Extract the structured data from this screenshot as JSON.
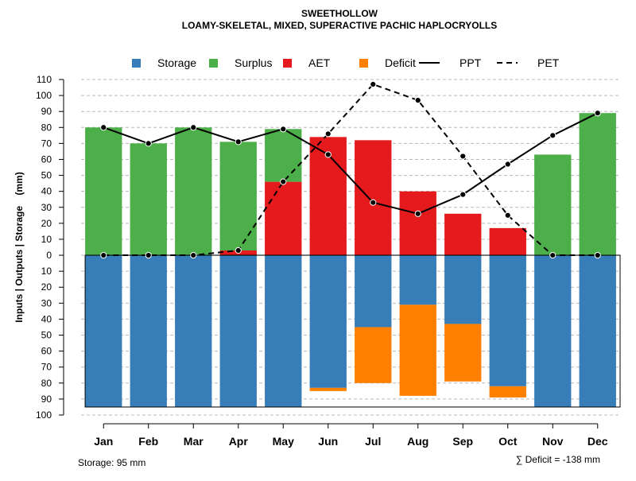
{
  "chart_data": {
    "type": "bar",
    "title": "SWEETHOLLOW",
    "subtitle": "LOAMY-SKELETAL, MIXED, SUPERACTIVE PACHIC HAPLOCRYOLLS",
    "ylabel": "Inputs | Outputs | Storage    (mm)",
    "categories": [
      "Jan",
      "Feb",
      "Mar",
      "Apr",
      "May",
      "Jun",
      "Jul",
      "Aug",
      "Sep",
      "Oct",
      "Nov",
      "Dec"
    ],
    "ylim": [
      -100,
      110
    ],
    "yticks": [
      110,
      100,
      90,
      80,
      70,
      60,
      50,
      40,
      30,
      20,
      10,
      0,
      -10,
      -20,
      -30,
      -40,
      -50,
      -60,
      -70,
      -80,
      -90,
      -100
    ],
    "ytick_labels": [
      "110",
      "100",
      "90",
      "80",
      "70",
      "60",
      "50",
      "40",
      "30",
      "20",
      "10",
      "0",
      "10",
      "20",
      "30",
      "40",
      "50",
      "60",
      "70",
      "80",
      "90",
      "100"
    ],
    "legend": [
      {
        "label": "Storage",
        "kind": "box",
        "color": "#377EB8"
      },
      {
        "label": "Surplus",
        "kind": "box",
        "color": "#4DAF4A"
      },
      {
        "label": "AET",
        "kind": "box",
        "color": "#E41A1C"
      },
      {
        "label": "Deficit",
        "kind": "box",
        "color": "#FF7F00"
      },
      {
        "label": "PPT",
        "kind": "solid",
        "color": "#000000"
      },
      {
        "label": "PET",
        "kind": "dashed",
        "color": "#000000"
      }
    ],
    "colors": {
      "storage": "#377EB8",
      "surplus": "#4DAF4A",
      "aet": "#E41A1C",
      "deficit": "#FF7F00"
    },
    "series": [
      {
        "name": "AET",
        "values": [
          0,
          0,
          0,
          3,
          46,
          74,
          72,
          40,
          26,
          17,
          0,
          0
        ]
      },
      {
        "name": "Surplus",
        "values": [
          80,
          70,
          80,
          68,
          33,
          0,
          0,
          0,
          0,
          0,
          63,
          89
        ]
      },
      {
        "name": "Storage",
        "values": [
          95,
          95,
          95,
          95,
          95,
          83,
          45,
          31,
          43,
          82,
          95,
          95
        ]
      },
      {
        "name": "Deficit",
        "values": [
          0,
          0,
          0,
          0,
          0,
          2,
          35,
          57,
          36,
          7,
          0,
          0
        ]
      },
      {
        "name": "PPT",
        "values": [
          80,
          70,
          80,
          71,
          79,
          63,
          33,
          26,
          38,
          57,
          75,
          89
        ]
      },
      {
        "name": "PET",
        "values": [
          0,
          0,
          0,
          3,
          46,
          76,
          107,
          97,
          62,
          25,
          0,
          0
        ]
      }
    ],
    "storage_capacity": 95,
    "footer_left": "Storage: 95 mm",
    "footer_right": "∑ Deficit = -138 mm"
  }
}
